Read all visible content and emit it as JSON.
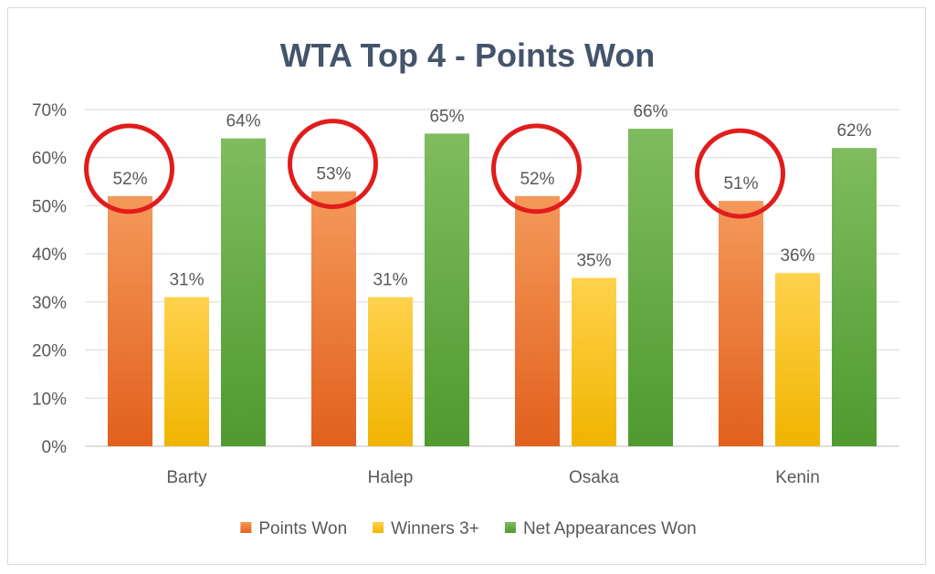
{
  "chart_data": {
    "type": "bar",
    "title": "WTA Top 4 - Points Won",
    "categories": [
      "Barty",
      "Halep",
      "Osaka",
      "Kenin"
    ],
    "series": [
      {
        "name": "Points Won",
        "values": [
          52,
          53,
          52,
          51
        ],
        "color_top": "#f4995a",
        "color_bottom": "#e2601d"
      },
      {
        "name": "Winners 3+",
        "values": [
          31,
          31,
          35,
          36
        ],
        "color_top": "#ffd24d",
        "color_bottom": "#f0b400"
      },
      {
        "name": "Net Appearances Won",
        "values": [
          64,
          65,
          66,
          62
        ],
        "color_top": "#7fbc5f",
        "color_bottom": "#4f9a2f"
      }
    ],
    "value_suffix": "%",
    "ylim": [
      0,
      70
    ],
    "yticks": [
      "0%",
      "10%",
      "20%",
      "30%",
      "40%",
      "50%",
      "60%",
      "70%"
    ],
    "grid": true,
    "legend_position": "bottom",
    "annotation": {
      "type": "circle",
      "series": "Points Won",
      "color": "#e21c1c"
    }
  }
}
